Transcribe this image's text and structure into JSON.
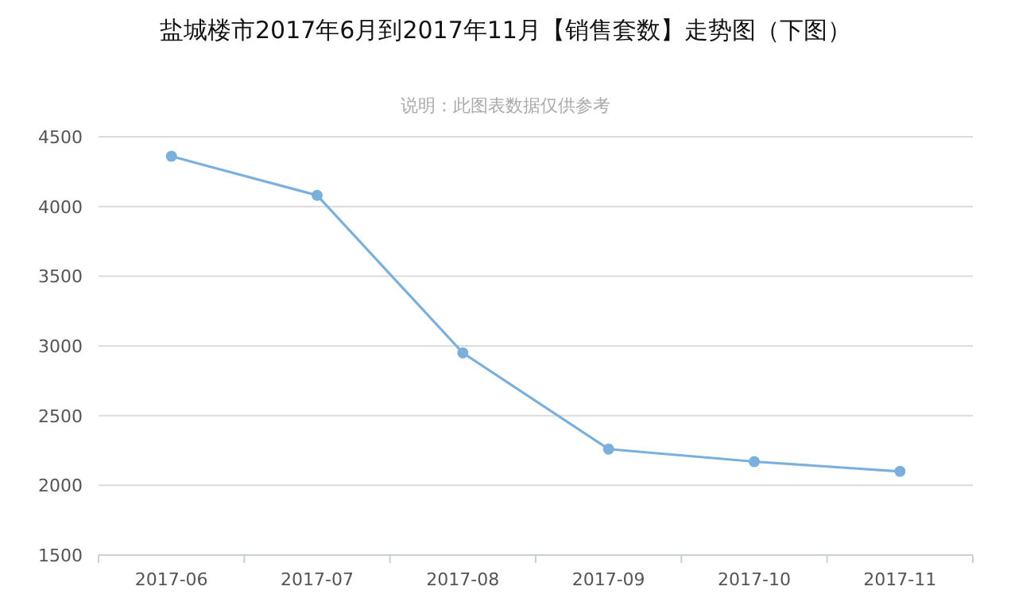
{
  "chart_data": {
    "type": "line",
    "title": "盐城楼市2017年6月到2017年11月【销售套数】走势图（下图）",
    "subtitle": "说明：此图表数据仅供参考",
    "categories": [
      "2017-06",
      "2017-07",
      "2017-08",
      "2017-09",
      "2017-10",
      "2017-11"
    ],
    "series": [
      {
        "color": "#7ab0db",
        "values": [
          4360,
          4080,
          2950,
          2260,
          2170,
          2100
        ]
      }
    ],
    "ylim": [
      1500,
      4500
    ],
    "yticks": [
      1500,
      2000,
      2500,
      3000,
      3500,
      4000,
      4500
    ],
    "grid": "y",
    "marker": "circle",
    "line_style": "solid"
  }
}
